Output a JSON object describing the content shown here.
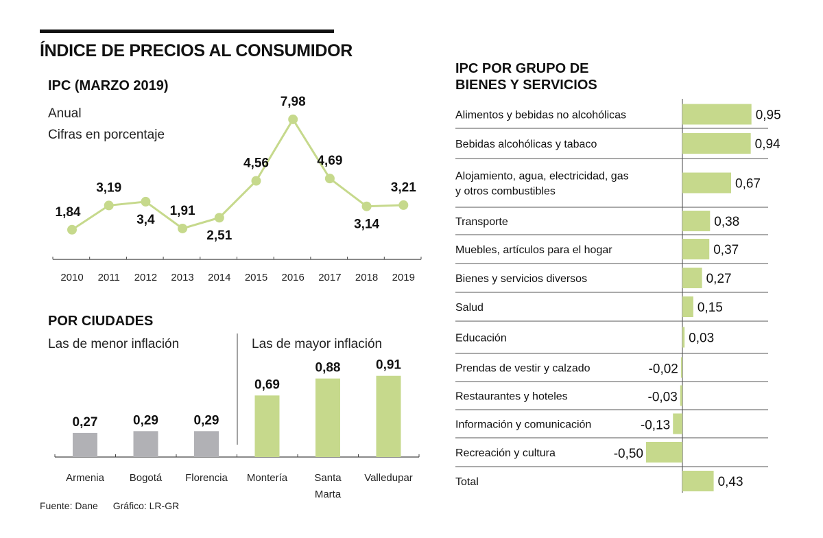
{
  "header": {
    "title": "ÍNDICE DE PRECIOS AL CONSUMIDOR"
  },
  "line_section": {
    "title": "IPC (MARZO 2019)",
    "note1": "Anual",
    "note2": "Cifras en porcentaje"
  },
  "city_section": {
    "title": "POR CIUDADES",
    "left_label": "Las de menor inflación",
    "right_label": "Las de mayor inflación"
  },
  "group_section": {
    "title_line1": "IPC POR GRUPO DE",
    "title_line2": "BIENES Y SERVICIOS"
  },
  "footer": {
    "source": "Fuente: Dane",
    "credit": "Gráfico: LR-GR"
  },
  "colors": {
    "green": "#c6d98c",
    "gray": "#b1b1b5",
    "axis": "#444444",
    "row_rule": "#555555"
  },
  "chart_data": [
    {
      "type": "line",
      "title": "IPC (MARZO 2019)",
      "subtitle": "Anual — Cifras en porcentaje",
      "x": [
        "2010",
        "2011",
        "2012",
        "2013",
        "2014",
        "2015",
        "2016",
        "2017",
        "2018",
        "2019"
      ],
      "values": [
        1.84,
        3.19,
        3.4,
        1.91,
        2.51,
        4.56,
        7.98,
        4.69,
        3.14,
        3.21
      ],
      "labels": [
        "1,84",
        "3,19",
        "3,4",
        "1,91",
        "2,51",
        "4,56",
        "7,98",
        "4,69",
        "3,14",
        "3,21"
      ],
      "label_positions": [
        "above",
        "above",
        "below",
        "above",
        "below",
        "above",
        "above",
        "above",
        "below",
        "above"
      ],
      "xlabel": "",
      "ylabel": "",
      "ylim": [
        0,
        9
      ],
      "grid": false
    },
    {
      "type": "bar",
      "title": "POR CIUDADES",
      "groups": [
        {
          "name": "Las de menor inflación",
          "categories": [
            "Armenia",
            "Bogotá",
            "Florencia"
          ],
          "values": [
            0.27,
            0.29,
            0.29
          ],
          "labels": [
            "0,27",
            "0,29",
            "0,29"
          ],
          "color": "gray"
        },
        {
          "name": "Las de mayor inflación",
          "categories": [
            "Montería",
            "Santa Marta",
            "Valledupar"
          ],
          "values": [
            0.69,
            0.88,
            0.91
          ],
          "labels": [
            "0,69",
            "0,88",
            "0,91"
          ],
          "color": "green"
        }
      ],
      "ylim": [
        0,
        1
      ],
      "grid": false
    },
    {
      "type": "bar",
      "orientation": "horizontal",
      "title": "IPC POR GRUPO DE BIENES Y SERVICIOS",
      "categories": [
        "Alimentos y bebidas no alcohólicas",
        "Bebidas alcohólicas y tabaco",
        "Alojamiento, agua, electricidad, gas\ny otros combustibles",
        "Transporte",
        "Muebles, artículos para el hogar",
        "Bienes y servicios diversos",
        "Salud",
        "Educación",
        "Prendas de vestir y calzado",
        "Restaurantes  y hoteles",
        "Información y comunicación",
        "Recreación y cultura",
        "Total"
      ],
      "values": [
        0.95,
        0.94,
        0.67,
        0.38,
        0.37,
        0.27,
        0.15,
        0.03,
        -0.02,
        -0.03,
        -0.13,
        -0.5,
        0.43
      ],
      "labels": [
        "0,95",
        "0,94",
        "0,67",
        "0,38",
        "0,37",
        "0,27",
        "0,15",
        "0,03",
        "-0,02",
        "-0,03",
        "-0,13",
        "-0,50",
        "0,43"
      ],
      "xlim": [
        -0.5,
        1.0
      ],
      "grid": false
    }
  ]
}
